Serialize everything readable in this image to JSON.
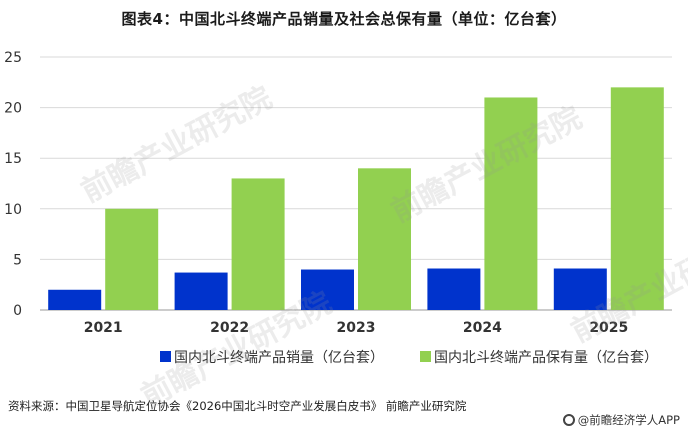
{
  "title": "图表4：中国北斗终端产品销量及社会总保有量（单位：亿台套）",
  "source": "资料来源：中国卫星导航定位协会《2026中国北斗时空产业发展白皮书》 前瞻产业研究院",
  "app_watermark": "@前瞻经济学人APP",
  "watermark_text": "前瞻产业研究院",
  "colors": {
    "sales": "#0033cc",
    "stock": "#92d050",
    "axis": "#999999",
    "grid": "#d9d9d9"
  },
  "chart_data": {
    "type": "bar",
    "categories": [
      "2021",
      "2022",
      "2023",
      "2024",
      "2025"
    ],
    "series": [
      {
        "name": "国内北斗终端产品销量（亿台套）",
        "values": [
          2.0,
          3.7,
          4.0,
          4.1,
          4.1
        ]
      },
      {
        "name": "国内北斗终端产品保有量（亿台套）",
        "values": [
          10,
          13,
          14,
          21,
          22
        ]
      }
    ],
    "ylim": [
      0,
      25
    ],
    "yticks": [
      "0",
      "5",
      "10",
      "15",
      "20",
      "25"
    ],
    "grid": true,
    "legend": "bottom"
  }
}
